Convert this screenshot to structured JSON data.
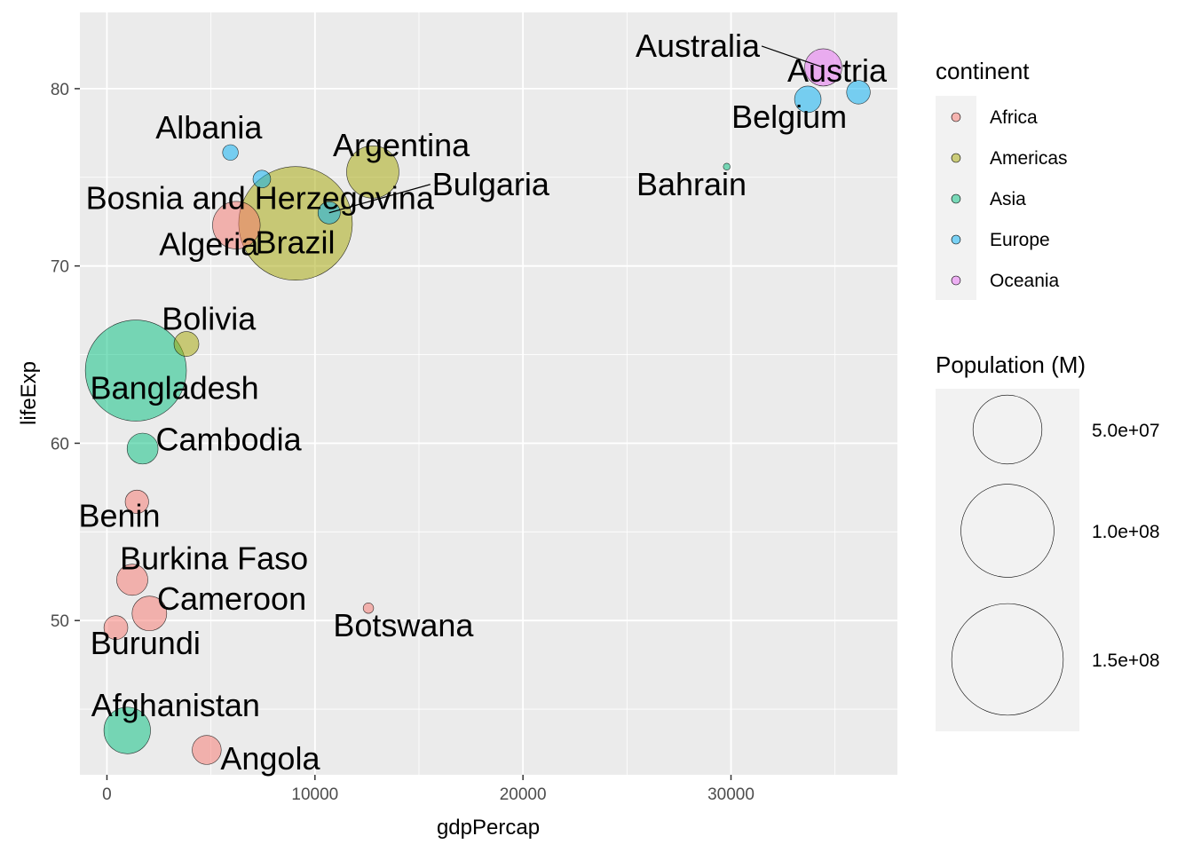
{
  "chart_data": {
    "type": "scatter",
    "xlabel": "gdpPercap",
    "ylabel": "lifeExp",
    "xlim": [
      -1300,
      38000
    ],
    "ylim": [
      41.3,
      84.3
    ],
    "x_ticks": [
      0,
      10000,
      20000,
      30000
    ],
    "x_tick_labels": [
      "0",
      "10000",
      "20000",
      "30000"
    ],
    "y_ticks": [
      50,
      60,
      70,
      80
    ],
    "y_tick_labels": [
      "50",
      "60",
      "70",
      "80"
    ],
    "grid": true,
    "legend_position": "right",
    "color_legend": {
      "title": "continent",
      "entries": [
        {
          "label": "Africa",
          "color": "#F8766D"
        },
        {
          "label": "Americas",
          "color": "#A3A500"
        },
        {
          "label": "Asia",
          "color": "#00BF7D"
        },
        {
          "label": "Europe",
          "color": "#00B0F6"
        },
        {
          "label": "Oceania",
          "color": "#E76BF3"
        }
      ]
    },
    "size_legend": {
      "title": "Population (M)",
      "entries": [
        {
          "label": "5.0e+07",
          "pop": 50000000
        },
        {
          "label": "1.0e+08",
          "pop": 100000000
        },
        {
          "label": "1.5e+08",
          "pop": 150000000
        }
      ]
    },
    "points": [
      {
        "country": "Afghanistan",
        "continent": "Asia",
        "gdpPercap": 975,
        "lifeExp": 43.8,
        "pop": 31900000
      },
      {
        "country": "Albania",
        "continent": "Europe",
        "gdpPercap": 5937,
        "lifeExp": 76.4,
        "pop": 3600000
      },
      {
        "country": "Algeria",
        "continent": "Africa",
        "gdpPercap": 6223,
        "lifeExp": 72.3,
        "pop": 33300000
      },
      {
        "country": "Angola",
        "continent": "Africa",
        "gdpPercap": 4797,
        "lifeExp": 42.7,
        "pop": 12400000
      },
      {
        "country": "Argentina",
        "continent": "Americas",
        "gdpPercap": 12779,
        "lifeExp": 75.3,
        "pop": 40300000
      },
      {
        "country": "Australia",
        "continent": "Oceania",
        "gdpPercap": 34435,
        "lifeExp": 81.2,
        "pop": 20400000
      },
      {
        "country": "Austria",
        "continent": "Europe",
        "gdpPercap": 36126,
        "lifeExp": 79.8,
        "pop": 8200000
      },
      {
        "country": "Bahrain",
        "continent": "Asia",
        "gdpPercap": 29796,
        "lifeExp": 75.6,
        "pop": 700000
      },
      {
        "country": "Bangladesh",
        "continent": "Asia",
        "gdpPercap": 1391,
        "lifeExp": 64.1,
        "pop": 150400000
      },
      {
        "country": "Belgium",
        "continent": "Europe",
        "gdpPercap": 33693,
        "lifeExp": 79.4,
        "pop": 10400000
      },
      {
        "country": "Benin",
        "continent": "Africa",
        "gdpPercap": 1441,
        "lifeExp": 56.7,
        "pop": 8100000
      },
      {
        "country": "Bolivia",
        "continent": "Americas",
        "gdpPercap": 3822,
        "lifeExp": 65.6,
        "pop": 9100000
      },
      {
        "country": "Bosnia and Herzegovina",
        "continent": "Europe",
        "gdpPercap": 7446,
        "lifeExp": 74.9,
        "pop": 4600000
      },
      {
        "country": "Botswana",
        "continent": "Africa",
        "gdpPercap": 12570,
        "lifeExp": 50.7,
        "pop": 1600000
      },
      {
        "country": "Brazil",
        "continent": "Americas",
        "gdpPercap": 9066,
        "lifeExp": 72.4,
        "pop": 190000000
      },
      {
        "country": "Bulgaria",
        "continent": "Europe",
        "gdpPercap": 10681,
        "lifeExp": 73.0,
        "pop": 7300000
      },
      {
        "country": "Burkina Faso",
        "continent": "Africa",
        "gdpPercap": 1217,
        "lifeExp": 52.3,
        "pop": 14300000
      },
      {
        "country": "Burundi",
        "continent": "Africa",
        "gdpPercap": 430,
        "lifeExp": 49.6,
        "pop": 8400000
      },
      {
        "country": "Cambodia",
        "continent": "Asia",
        "gdpPercap": 1714,
        "lifeExp": 59.7,
        "pop": 14100000
      },
      {
        "country": "Cameroon",
        "continent": "Africa",
        "gdpPercap": 2042,
        "lifeExp": 50.4,
        "pop": 17700000
      }
    ],
    "labels": [
      {
        "country": "Afghanistan",
        "x": 3300,
        "y": 44.6,
        "anchor": "middle",
        "leader": false
      },
      {
        "country": "Albania",
        "x": 4900,
        "y": 77.2,
        "anchor": "middle",
        "leader": false
      },
      {
        "country": "Algeria",
        "x": 4900,
        "y": 70.6,
        "anchor": "middle",
        "leader": false
      },
      {
        "country": "Angola",
        "x": 7850,
        "y": 41.6,
        "anchor": "middle",
        "leader": false
      },
      {
        "country": "Argentina",
        "x": 14150,
        "y": 76.2,
        "anchor": "middle",
        "leader": false
      },
      {
        "country": "Australia",
        "x": 28400,
        "y": 81.8,
        "anchor": "middle",
        "leader": true
      },
      {
        "country": "Austria",
        "x": 35100,
        "y": 80.4,
        "anchor": "middle",
        "leader": false
      },
      {
        "country": "Bahrain",
        "x": 28100,
        "y": 74.0,
        "anchor": "middle",
        "leader": false
      },
      {
        "country": "Bangladesh",
        "x": 3250,
        "y": 62.5,
        "anchor": "middle",
        "leader": false
      },
      {
        "country": "Belgium",
        "x": 32800,
        "y": 77.8,
        "anchor": "middle",
        "leader": false
      },
      {
        "country": "Benin",
        "x": 600,
        "y": 55.3,
        "anchor": "middle",
        "leader": false
      },
      {
        "country": "Bolivia",
        "x": 4900,
        "y": 66.4,
        "anchor": "middle",
        "leader": false
      },
      {
        "country": "Bosnia and Herzegovina",
        "x": 7350,
        "y": 73.2,
        "anchor": "middle",
        "leader": false
      },
      {
        "country": "Botswana",
        "x": 14250,
        "y": 49.1,
        "anchor": "middle",
        "leader": false
      },
      {
        "country": "Brazil",
        "x": 9050,
        "y": 70.7,
        "anchor": "middle",
        "leader": false
      },
      {
        "country": "Bulgaria",
        "x": 18450,
        "y": 74.0,
        "anchor": "middle",
        "leader": true
      },
      {
        "country": "Burkina Faso",
        "x": 5150,
        "y": 52.9,
        "anchor": "middle",
        "leader": false
      },
      {
        "country": "Burundi",
        "x": 1850,
        "y": 48.1,
        "anchor": "middle",
        "leader": false
      },
      {
        "country": "Cambodia",
        "x": 5850,
        "y": 59.6,
        "anchor": "middle",
        "leader": false
      },
      {
        "country": "Cameroon",
        "x": 6000,
        "y": 50.6,
        "anchor": "middle",
        "leader": false
      }
    ]
  }
}
